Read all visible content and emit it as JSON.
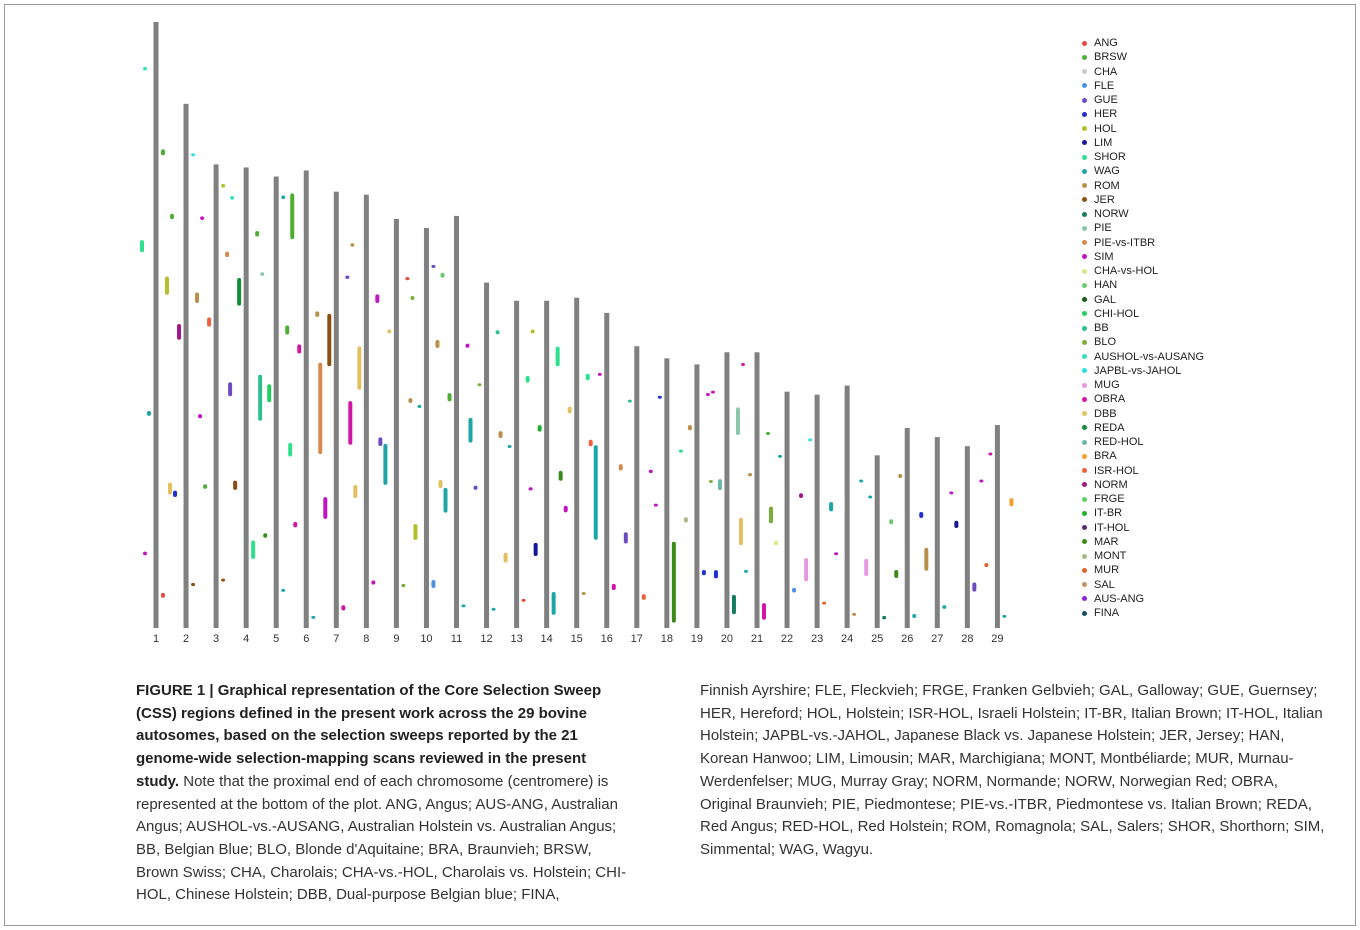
{
  "figure": {
    "legend": [
      {
        "code": "ANG",
        "color": "#e74c3c"
      },
      {
        "code": "BRSW",
        "color": "#4caf34"
      },
      {
        "code": "CHA",
        "color": "#c9c9c9"
      },
      {
        "code": "FLE",
        "color": "#4f8fe0"
      },
      {
        "code": "GUE",
        "color": "#6a4cc0"
      },
      {
        "code": "HER",
        "color": "#1f2fd0"
      },
      {
        "code": "HOL",
        "color": "#b3c02a"
      },
      {
        "code": "LIM",
        "color": "#16169a"
      },
      {
        "code": "SHOR",
        "color": "#2ee08a"
      },
      {
        "code": "WAG",
        "color": "#1ea6a6"
      },
      {
        "code": "ROM",
        "color": "#b8904a"
      },
      {
        "code": "JER",
        "color": "#8a4f12"
      },
      {
        "code": "NORW",
        "color": "#177a5e"
      },
      {
        "code": "PIE",
        "color": "#88c8a8"
      },
      {
        "code": "PIE-vs-ITBR",
        "color": "#d48a50"
      },
      {
        "code": "SIM",
        "color": "#c015c0"
      },
      {
        "code": "CHA-vs-HOL",
        "color": "#d7e88a"
      },
      {
        "code": "HAN",
        "color": "#6fc86f"
      },
      {
        "code": "GAL",
        "color": "#1b5e1b"
      },
      {
        "code": "CHI-HOL",
        "color": "#22d060"
      },
      {
        "code": "BB",
        "color": "#2fbf8f"
      },
      {
        "code": "BLO",
        "color": "#7aae3a"
      },
      {
        "code": "AUSHOL-vs-AUSANG",
        "color": "#35e0b8"
      },
      {
        "code": "JAPBL-vs-JAHOL",
        "color": "#2ee0e0"
      },
      {
        "code": "MUG",
        "color": "#e59ae0"
      },
      {
        "code": "OBRA",
        "color": "#d016a6"
      },
      {
        "code": "DBB",
        "color": "#e0c060"
      },
      {
        "code": "REDA",
        "color": "#118a3a"
      },
      {
        "code": "RED-HOL",
        "color": "#6ab8a8"
      },
      {
        "code": "BRA",
        "color": "#f0a030"
      },
      {
        "code": "ISR-HOL",
        "color": "#f06040"
      },
      {
        "code": "NORM",
        "color": "#a0178a"
      },
      {
        "code": "FRGE",
        "color": "#5ed060"
      },
      {
        "code": "IT-BR",
        "color": "#20b030"
      },
      {
        "code": "IT-HOL",
        "color": "#5a2a7a"
      },
      {
        "code": "MAR",
        "color": "#3a8a1a"
      },
      {
        "code": "MONT",
        "color": "#a8b888"
      },
      {
        "code": "MUR",
        "color": "#e06030"
      },
      {
        "code": "SAL",
        "color": "#c89060"
      },
      {
        "code": "AUS-ANG",
        "color": "#8a20e0"
      },
      {
        "code": "FINA",
        "color": "#1a4a6a"
      }
    ],
    "chromosomes": [
      {
        "label": "1",
        "length": 1.0,
        "segments": [
          [
            0.05,
            0.008,
            0
          ],
          [
            0.12,
            0.006,
            15
          ],
          [
            0.22,
            0.02,
            26
          ],
          [
            0.35,
            0.008,
            9
          ],
          [
            0.55,
            0.03,
            6
          ],
          [
            0.62,
            0.02,
            8
          ],
          [
            0.78,
            0.01,
            1
          ],
          [
            0.92,
            0.006,
            22
          ]
        ]
      },
      {
        "label": "2",
        "length": 0.865,
        "segments": [
          [
            0.08,
            0.006,
            11
          ],
          [
            0.25,
            0.012,
            5
          ],
          [
            0.4,
            0.008,
            15
          ],
          [
            0.55,
            0.03,
            31
          ],
          [
            0.62,
            0.02,
            10
          ],
          [
            0.78,
            0.01,
            1
          ],
          [
            0.9,
            0.005,
            23
          ]
        ]
      },
      {
        "label": "3",
        "length": 0.765,
        "segments": [
          [
            0.1,
            0.006,
            11
          ],
          [
            0.3,
            0.01,
            1
          ],
          [
            0.5,
            0.03,
            4
          ],
          [
            0.65,
            0.02,
            30
          ],
          [
            0.8,
            0.012,
            14
          ],
          [
            0.88,
            0.008,
            15
          ],
          [
            0.95,
            0.008,
            6
          ]
        ]
      },
      {
        "label": "4",
        "length": 0.76,
        "segments": [
          [
            0.15,
            0.04,
            8
          ],
          [
            0.3,
            0.02,
            11
          ],
          [
            0.45,
            0.1,
            20
          ],
          [
            0.7,
            0.06,
            27
          ],
          [
            0.85,
            0.012,
            1
          ],
          [
            0.93,
            0.008,
            22
          ]
        ]
      },
      {
        "label": "5",
        "length": 0.745,
        "segments": [
          [
            0.08,
            0.006,
            9
          ],
          [
            0.2,
            0.01,
            35
          ],
          [
            0.38,
            0.03,
            8
          ],
          [
            0.5,
            0.04,
            19
          ],
          [
            0.65,
            0.02,
            1
          ],
          [
            0.78,
            0.008,
            13
          ],
          [
            0.95,
            0.008,
            9
          ]
        ]
      },
      {
        "label": "6",
        "length": 0.755,
        "segments": [
          [
            0.02,
            0.006,
            9
          ],
          [
            0.22,
            0.012,
            25
          ],
          [
            0.38,
            0.2,
            14
          ],
          [
            0.6,
            0.02,
            25
          ],
          [
            0.68,
            0.012,
            10
          ],
          [
            0.85,
            0.1,
            1
          ]
        ]
      },
      {
        "label": "7",
        "length": 0.72,
        "segments": [
          [
            0.04,
            0.012,
            25
          ],
          [
            0.25,
            0.05,
            15
          ],
          [
            0.42,
            0.1,
            25
          ],
          [
            0.6,
            0.12,
            11
          ],
          [
            0.8,
            0.008,
            4
          ]
        ]
      },
      {
        "label": "8",
        "length": 0.715,
        "segments": [
          [
            0.1,
            0.01,
            15
          ],
          [
            0.3,
            0.03,
            26
          ],
          [
            0.42,
            0.02,
            4
          ],
          [
            0.55,
            0.1,
            26
          ],
          [
            0.75,
            0.02,
            15
          ],
          [
            0.88,
            0.008,
            10
          ]
        ]
      },
      {
        "label": "9",
        "length": 0.675,
        "segments": [
          [
            0.1,
            0.008,
            21
          ],
          [
            0.35,
            0.1,
            9
          ],
          [
            0.55,
            0.012,
            10
          ],
          [
            0.72,
            0.01,
            26
          ],
          [
            0.85,
            0.008,
            0
          ]
        ]
      },
      {
        "label": "10",
        "length": 0.66,
        "segments": [
          [
            0.1,
            0.02,
            3
          ],
          [
            0.22,
            0.04,
            6
          ],
          [
            0.35,
            0.02,
            26
          ],
          [
            0.55,
            0.008,
            9
          ],
          [
            0.7,
            0.02,
            10
          ],
          [
            0.82,
            0.01,
            21
          ],
          [
            0.9,
            0.008,
            4
          ]
        ]
      },
      {
        "label": "11",
        "length": 0.68,
        "segments": [
          [
            0.05,
            0.006,
            9
          ],
          [
            0.28,
            0.06,
            9
          ],
          [
            0.45,
            0.06,
            9
          ],
          [
            0.55,
            0.02,
            1
          ],
          [
            0.68,
            0.01,
            15
          ],
          [
            0.85,
            0.012,
            17
          ]
        ]
      },
      {
        "label": "12",
        "length": 0.57,
        "segments": [
          [
            0.05,
            0.008,
            9
          ],
          [
            0.4,
            0.012,
            4
          ],
          [
            0.55,
            0.02,
            10
          ],
          [
            0.7,
            0.008,
            21
          ],
          [
            0.85,
            0.012,
            20
          ]
        ]
      },
      {
        "label": "13",
        "length": 0.54,
        "segments": [
          [
            0.08,
            0.006,
            0
          ],
          [
            0.2,
            0.03,
            26
          ],
          [
            0.42,
            0.01,
            15
          ],
          [
            0.55,
            0.008,
            9
          ],
          [
            0.75,
            0.02,
            8
          ]
        ]
      },
      {
        "label": "14",
        "length": 0.54,
        "segments": [
          [
            0.04,
            0.07,
            9
          ],
          [
            0.22,
            0.04,
            7
          ],
          [
            0.45,
            0.03,
            35
          ],
          [
            0.6,
            0.02,
            33
          ],
          [
            0.8,
            0.06,
            8
          ],
          [
            0.9,
            0.012,
            6
          ]
        ]
      },
      {
        "label": "15",
        "length": 0.545,
        "segments": [
          [
            0.1,
            0.008,
            10
          ],
          [
            0.35,
            0.02,
            15
          ],
          [
            0.55,
            0.02,
            30
          ],
          [
            0.65,
            0.02,
            26
          ],
          [
            0.75,
            0.02,
            8
          ]
        ]
      },
      {
        "label": "16",
        "length": 0.52,
        "segments": [
          [
            0.12,
            0.02,
            25
          ],
          [
            0.28,
            0.3,
            9
          ],
          [
            0.5,
            0.02,
            14
          ],
          [
            0.8,
            0.008,
            15
          ]
        ]
      },
      {
        "label": "17",
        "length": 0.465,
        "segments": [
          [
            0.1,
            0.02,
            30
          ],
          [
            0.3,
            0.04,
            4
          ],
          [
            0.55,
            0.012,
            15
          ],
          [
            0.8,
            0.008,
            20
          ]
        ]
      },
      {
        "label": "18",
        "length": 0.445,
        "segments": [
          [
            0.02,
            0.3,
            35
          ],
          [
            0.45,
            0.008,
            15
          ],
          [
            0.65,
            0.012,
            8
          ],
          [
            0.85,
            0.008,
            5
          ]
        ]
      },
      {
        "label": "19",
        "length": 0.435,
        "segments": [
          [
            0.2,
            0.02,
            5
          ],
          [
            0.4,
            0.02,
            36
          ],
          [
            0.55,
            0.01,
            21
          ],
          [
            0.75,
            0.02,
            10
          ],
          [
            0.88,
            0.008,
            15
          ]
        ]
      },
      {
        "label": "20",
        "length": 0.455,
        "segments": [
          [
            0.05,
            0.07,
            12
          ],
          [
            0.18,
            0.03,
            5
          ],
          [
            0.3,
            0.1,
            26
          ],
          [
            0.5,
            0.04,
            28
          ],
          [
            0.7,
            0.1,
            13
          ],
          [
            0.85,
            0.008,
            25
          ]
        ]
      },
      {
        "label": "21",
        "length": 0.455,
        "segments": [
          [
            0.03,
            0.06,
            25
          ],
          [
            0.2,
            0.008,
            9
          ],
          [
            0.38,
            0.06,
            21
          ],
          [
            0.55,
            0.012,
            10
          ],
          [
            0.7,
            0.008,
            1
          ],
          [
            0.95,
            0.008,
            25
          ]
        ]
      },
      {
        "label": "22",
        "length": 0.39,
        "segments": [
          [
            0.15,
            0.02,
            3
          ],
          [
            0.35,
            0.02,
            16
          ],
          [
            0.55,
            0.02,
            31
          ],
          [
            0.72,
            0.008,
            9
          ]
        ]
      },
      {
        "label": "23",
        "length": 0.385,
        "segments": [
          [
            0.1,
            0.01,
            37
          ],
          [
            0.2,
            0.1,
            24
          ],
          [
            0.5,
            0.04,
            9
          ],
          [
            0.8,
            0.008,
            23
          ]
        ]
      },
      {
        "label": "24",
        "length": 0.4,
        "segments": [
          [
            0.05,
            0.01,
            10
          ],
          [
            0.3,
            0.008,
            15
          ],
          [
            0.6,
            0.006,
            9
          ]
        ]
      },
      {
        "label": "25",
        "length": 0.285,
        "segments": [
          [
            0.05,
            0.02,
            12
          ],
          [
            0.3,
            0.1,
            24
          ],
          [
            0.6,
            0.03,
            17
          ],
          [
            0.75,
            0.008,
            9
          ]
        ]
      },
      {
        "label": "26",
        "length": 0.33,
        "segments": [
          [
            0.05,
            0.02,
            9
          ],
          [
            0.25,
            0.04,
            35
          ],
          [
            0.55,
            0.03,
            5
          ],
          [
            0.75,
            0.02,
            10
          ]
        ]
      },
      {
        "label": "27",
        "length": 0.315,
        "segments": [
          [
            0.1,
            0.02,
            9
          ],
          [
            0.3,
            0.12,
            10
          ],
          [
            0.7,
            0.008,
            15
          ]
        ]
      },
      {
        "label": "28",
        "length": 0.3,
        "segments": [
          [
            0.2,
            0.05,
            4
          ],
          [
            0.55,
            0.04,
            7
          ],
          [
            0.8,
            0.008,
            15
          ]
        ]
      },
      {
        "label": "29",
        "length": 0.335,
        "segments": [
          [
            0.05,
            0.008,
            9
          ],
          [
            0.3,
            0.02,
            37
          ],
          [
            0.6,
            0.04,
            29
          ],
          [
            0.85,
            0.008,
            25
          ]
        ]
      }
    ]
  },
  "caption": {
    "lead": "FIGURE 1 | Graphical representation of the Core Selection Sweep (CSS) regions defined in the present work across the 29 bovine autosomes, based on the selection sweeps reported by the 21 genome-wide selection-mapping scans reviewed in the present study.",
    "left_text": " Note that the proximal end of each chromosome (centromere) is represented at the bottom of the plot. ANG, Angus; AUS-ANG, Australian Angus; AUSHOL-vs.-AUSANG, Australian Holstein vs. Australian Angus; BB, Belgian Blue; BLO, Blonde d'Aquitaine; BRA, Braunvieh; BRSW, Brown Swiss; CHA, Charolais; CHA-vs.-HOL, Charolais vs. Holstein; CHI-HOL, Chinese Holstein; DBB, Dual-purpose Belgian blue; FINA,",
    "right_text": "Finnish Ayrshire; FLE, Fleckvieh; FRGE, Franken Gelbvieh; GAL, Galloway; GUE, Guernsey; HER, Hereford; HOL, Holstein; ISR-HOL, Israeli Holstein; IT-BR, Italian Brown; IT-HOL, Italian Holstein; JAPBL-vs.-JAHOL, Japanese Black vs. Japanese Holstein; JER, Jersey; HAN, Korean Hanwoo; LIM, Limousin; MAR, Marchigiana; MONT, Montbéliarde; MUR, Murnau-Werdenfelser; MUG, Murray Gray; NORM, Normande; NORW, Norwegian Red; OBRA, Original Braunvieh; PIE, Piedmontese; PIE-vs.-ITBR, Piedmontese vs. Italian Brown; REDA, Red Angus; RED-HOL, Red Holstein; ROM, Romagnola; SAL, Salers; SHOR, Shorthorn; SIM, Simmental; WAG, Wagyu."
  }
}
